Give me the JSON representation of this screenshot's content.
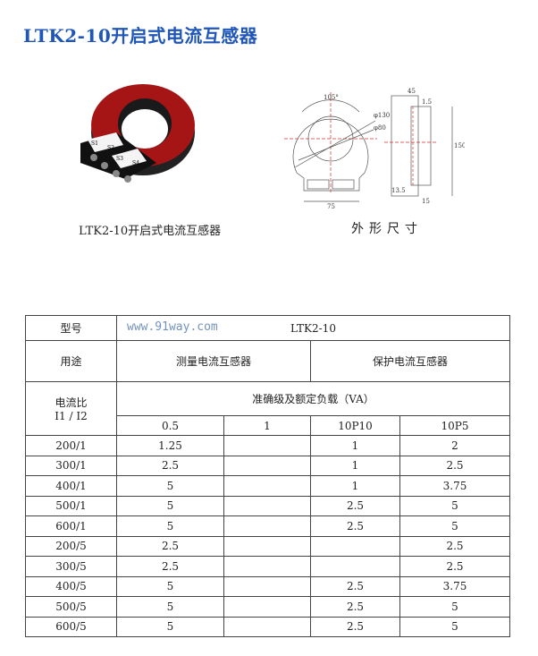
{
  "title": "LTK2-10开启式电流互感器",
  "photo_caption": "LTK2-10开启式电流互感器",
  "photo_terminal_labels": [
    "S1",
    "S2",
    "S3",
    "S4"
  ],
  "drawing_caption": "外形尺寸",
  "drawing_labels": {
    "angle": "105°",
    "outer_dia": "φ130",
    "inner_dia": "φ80",
    "width": "75",
    "depth": "45",
    "gap": "1.5",
    "height": "150",
    "base": "13.5",
    "foot": "15"
  },
  "watermark": "www.91way.com",
  "table": {
    "model_label": "型号",
    "model_value": "LTK2-10",
    "use_label": "用途",
    "use_measure": "测量电流互感器",
    "use_protect": "保护电流互感器",
    "ratio_label": "电流比",
    "ratio_sub_label": "I1 / I2",
    "accuracy_label": "准确级及额定负载（VA）",
    "classes": [
      "0.5",
      "1",
      "10P10",
      "10P5"
    ],
    "rows": [
      [
        "200/1",
        "1.25",
        "",
        "1",
        "2"
      ],
      [
        "300/1",
        "2.5",
        "",
        "1",
        "2.5"
      ],
      [
        "400/1",
        "5",
        "",
        "1",
        "3.75"
      ],
      [
        "500/1",
        "5",
        "",
        "2.5",
        "5"
      ],
      [
        "600/1",
        "5",
        "",
        "2.5",
        "5"
      ],
      [
        "200/5",
        "2.5",
        "",
        "",
        "2.5"
      ],
      [
        "300/5",
        "2.5",
        "",
        "",
        "2.5"
      ],
      [
        "400/5",
        "5",
        "",
        "2.5",
        "3.75"
      ],
      [
        "500/5",
        "5",
        "",
        "2.5",
        "5"
      ],
      [
        "600/5",
        "5",
        "",
        "2.5",
        "5"
      ]
    ]
  }
}
